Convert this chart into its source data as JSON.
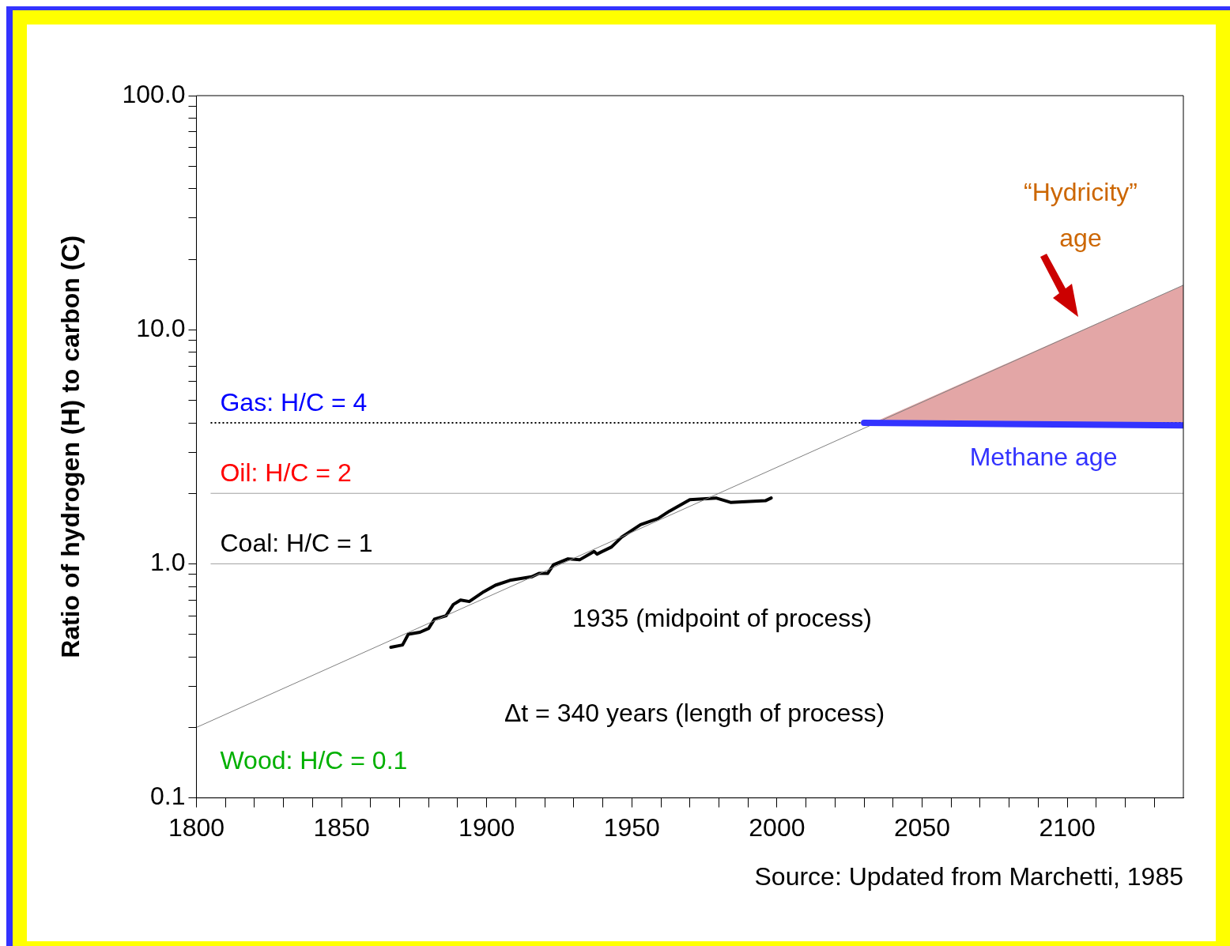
{
  "chart_data": {
    "type": "line",
    "ylabel": "Ratio of hydrogen (H) to carbon (C)",
    "log": "y",
    "grid": false,
    "legend": false,
    "marker": "none",
    "xlim": [
      1800,
      2140
    ],
    "xticks": [
      1800,
      {
        "value": 1810,
        "label": null
      },
      {
        "value": 1820,
        "label": null
      },
      {
        "value": 1830,
        "label": null
      },
      {
        "value": 1840,
        "label": null
      },
      1850,
      {
        "value": 1860,
        "label": null
      },
      {
        "value": 1870,
        "label": null
      },
      {
        "value": 1880,
        "label": null
      },
      {
        "value": 1890,
        "label": null
      },
      1900,
      {
        "value": 1910,
        "label": null
      },
      {
        "value": 1920,
        "label": null
      },
      {
        "value": 1930,
        "label": null
      },
      {
        "value": 1940,
        "label": null
      },
      1950,
      {
        "value": 1960,
        "label": null
      },
      {
        "value": 1970,
        "label": null
      },
      {
        "value": 1980,
        "label": null
      },
      {
        "value": 1990,
        "label": null
      },
      2000,
      {
        "value": 2010,
        "label": null
      },
      {
        "value": 2020,
        "label": null
      },
      {
        "value": 2030,
        "label": null
      },
      {
        "value": 2040,
        "label": null
      },
      2050,
      {
        "value": 2060,
        "label": null
      },
      {
        "value": 2070,
        "label": null
      },
      {
        "value": 2080,
        "label": null
      },
      {
        "value": 2090,
        "label": null
      },
      2100,
      {
        "value": 2110,
        "label": null
      },
      {
        "value": 2120,
        "label": null
      },
      {
        "value": 2130,
        "label": null
      }
    ],
    "ylim": [
      0.1,
      100
    ],
    "yticks": [
      0.1,
      {
        "value": 0.2,
        "label": null
      },
      {
        "value": 0.3,
        "label": null
      },
      {
        "value": 0.4,
        "label": null
      },
      {
        "value": 0.5,
        "label": null
      },
      {
        "value": 0.6,
        "label": null
      },
      {
        "value": 0.7,
        "label": null
      },
      {
        "value": 0.8,
        "label": null
      },
      {
        "value": 0.9,
        "label": null
      },
      {
        "value": 1,
        "label": "1.0"
      },
      {
        "value": 2,
        "label": null
      },
      {
        "value": 3,
        "label": null
      },
      {
        "value": 4,
        "label": null
      },
      {
        "value": 5,
        "label": null
      },
      {
        "value": 6,
        "label": null
      },
      {
        "value": 7,
        "label": null
      },
      {
        "value": 8,
        "label": null
      },
      {
        "value": 9,
        "label": null
      },
      {
        "value": 10,
        "label": "10.0"
      },
      {
        "value": 20,
        "label": null
      },
      {
        "value": 30,
        "label": null
      },
      {
        "value": 40,
        "label": null
      },
      {
        "value": 50,
        "label": null
      },
      {
        "value": 60,
        "label": null
      },
      {
        "value": 70,
        "label": null
      },
      {
        "value": 80,
        "label": null
      },
      {
        "value": 90,
        "label": null
      },
      {
        "value": 100,
        "label": "100.0"
      }
    ],
    "series": [
      {
        "type": "line",
        "color": "#000000",
        "x": [
          1867,
          1871,
          1873,
          1877,
          1880,
          1882,
          1886,
          1888.5,
          1891,
          1894,
          1899,
          1903,
          1908,
          1915.5,
          1918,
          1921,
          1923,
          1928,
          1932,
          1937,
          1938,
          1943,
          1946.5,
          1953,
          1959,
          1963,
          1970,
          1979,
          1984,
          1988,
          1996,
          1998
        ],
        "values": [
          0.44,
          0.45,
          0.5,
          0.51,
          0.53,
          0.58,
          0.6,
          0.67,
          0.7,
          0.69,
          0.76,
          0.81,
          0.85,
          0.88,
          0.91,
          0.91,
          0.99,
          1.05,
          1.04,
          1.13,
          1.1,
          1.18,
          1.3,
          1.47,
          1.56,
          1.68,
          1.88,
          1.91,
          1.83,
          1.84,
          1.86,
          1.91
        ]
      },
      {
        "type": "line",
        "color": "#808080",
        "x": [
          1800,
          2140
        ],
        "values": [
          0.2,
          15.5
        ]
      },
      {
        "type": "area",
        "name": "“Hydricity” age",
        "color": "#e3a6a6",
        "x": [
          2033,
          2140
        ],
        "values": [
          4,
          15.5
        ]
      },
      {
        "type": "line",
        "name": "Methane age",
        "color": "#3333ff",
        "x": [
          2030,
          2140
        ],
        "values": [
          4,
          3.9
        ]
      }
    ],
    "ref_lines": [
      {
        "axis": "y",
        "value": 4,
        "label": "Gas: H/C = 4",
        "line_style": "dotted"
      },
      {
        "axis": "y",
        "value": 2,
        "label": "Oil: H/C = 2",
        "line_style": "solid"
      },
      {
        "axis": "y",
        "value": 1,
        "label": "Coal: H/C = 1",
        "line_style": "solid"
      }
    ],
    "annotations": [
      "Wood: H/C = 0.1",
      "1935 (midpoint of process)",
      "Δt = 340 years (length of process)",
      "Source: Updated from Marchetti, 1985"
    ]
  }
}
